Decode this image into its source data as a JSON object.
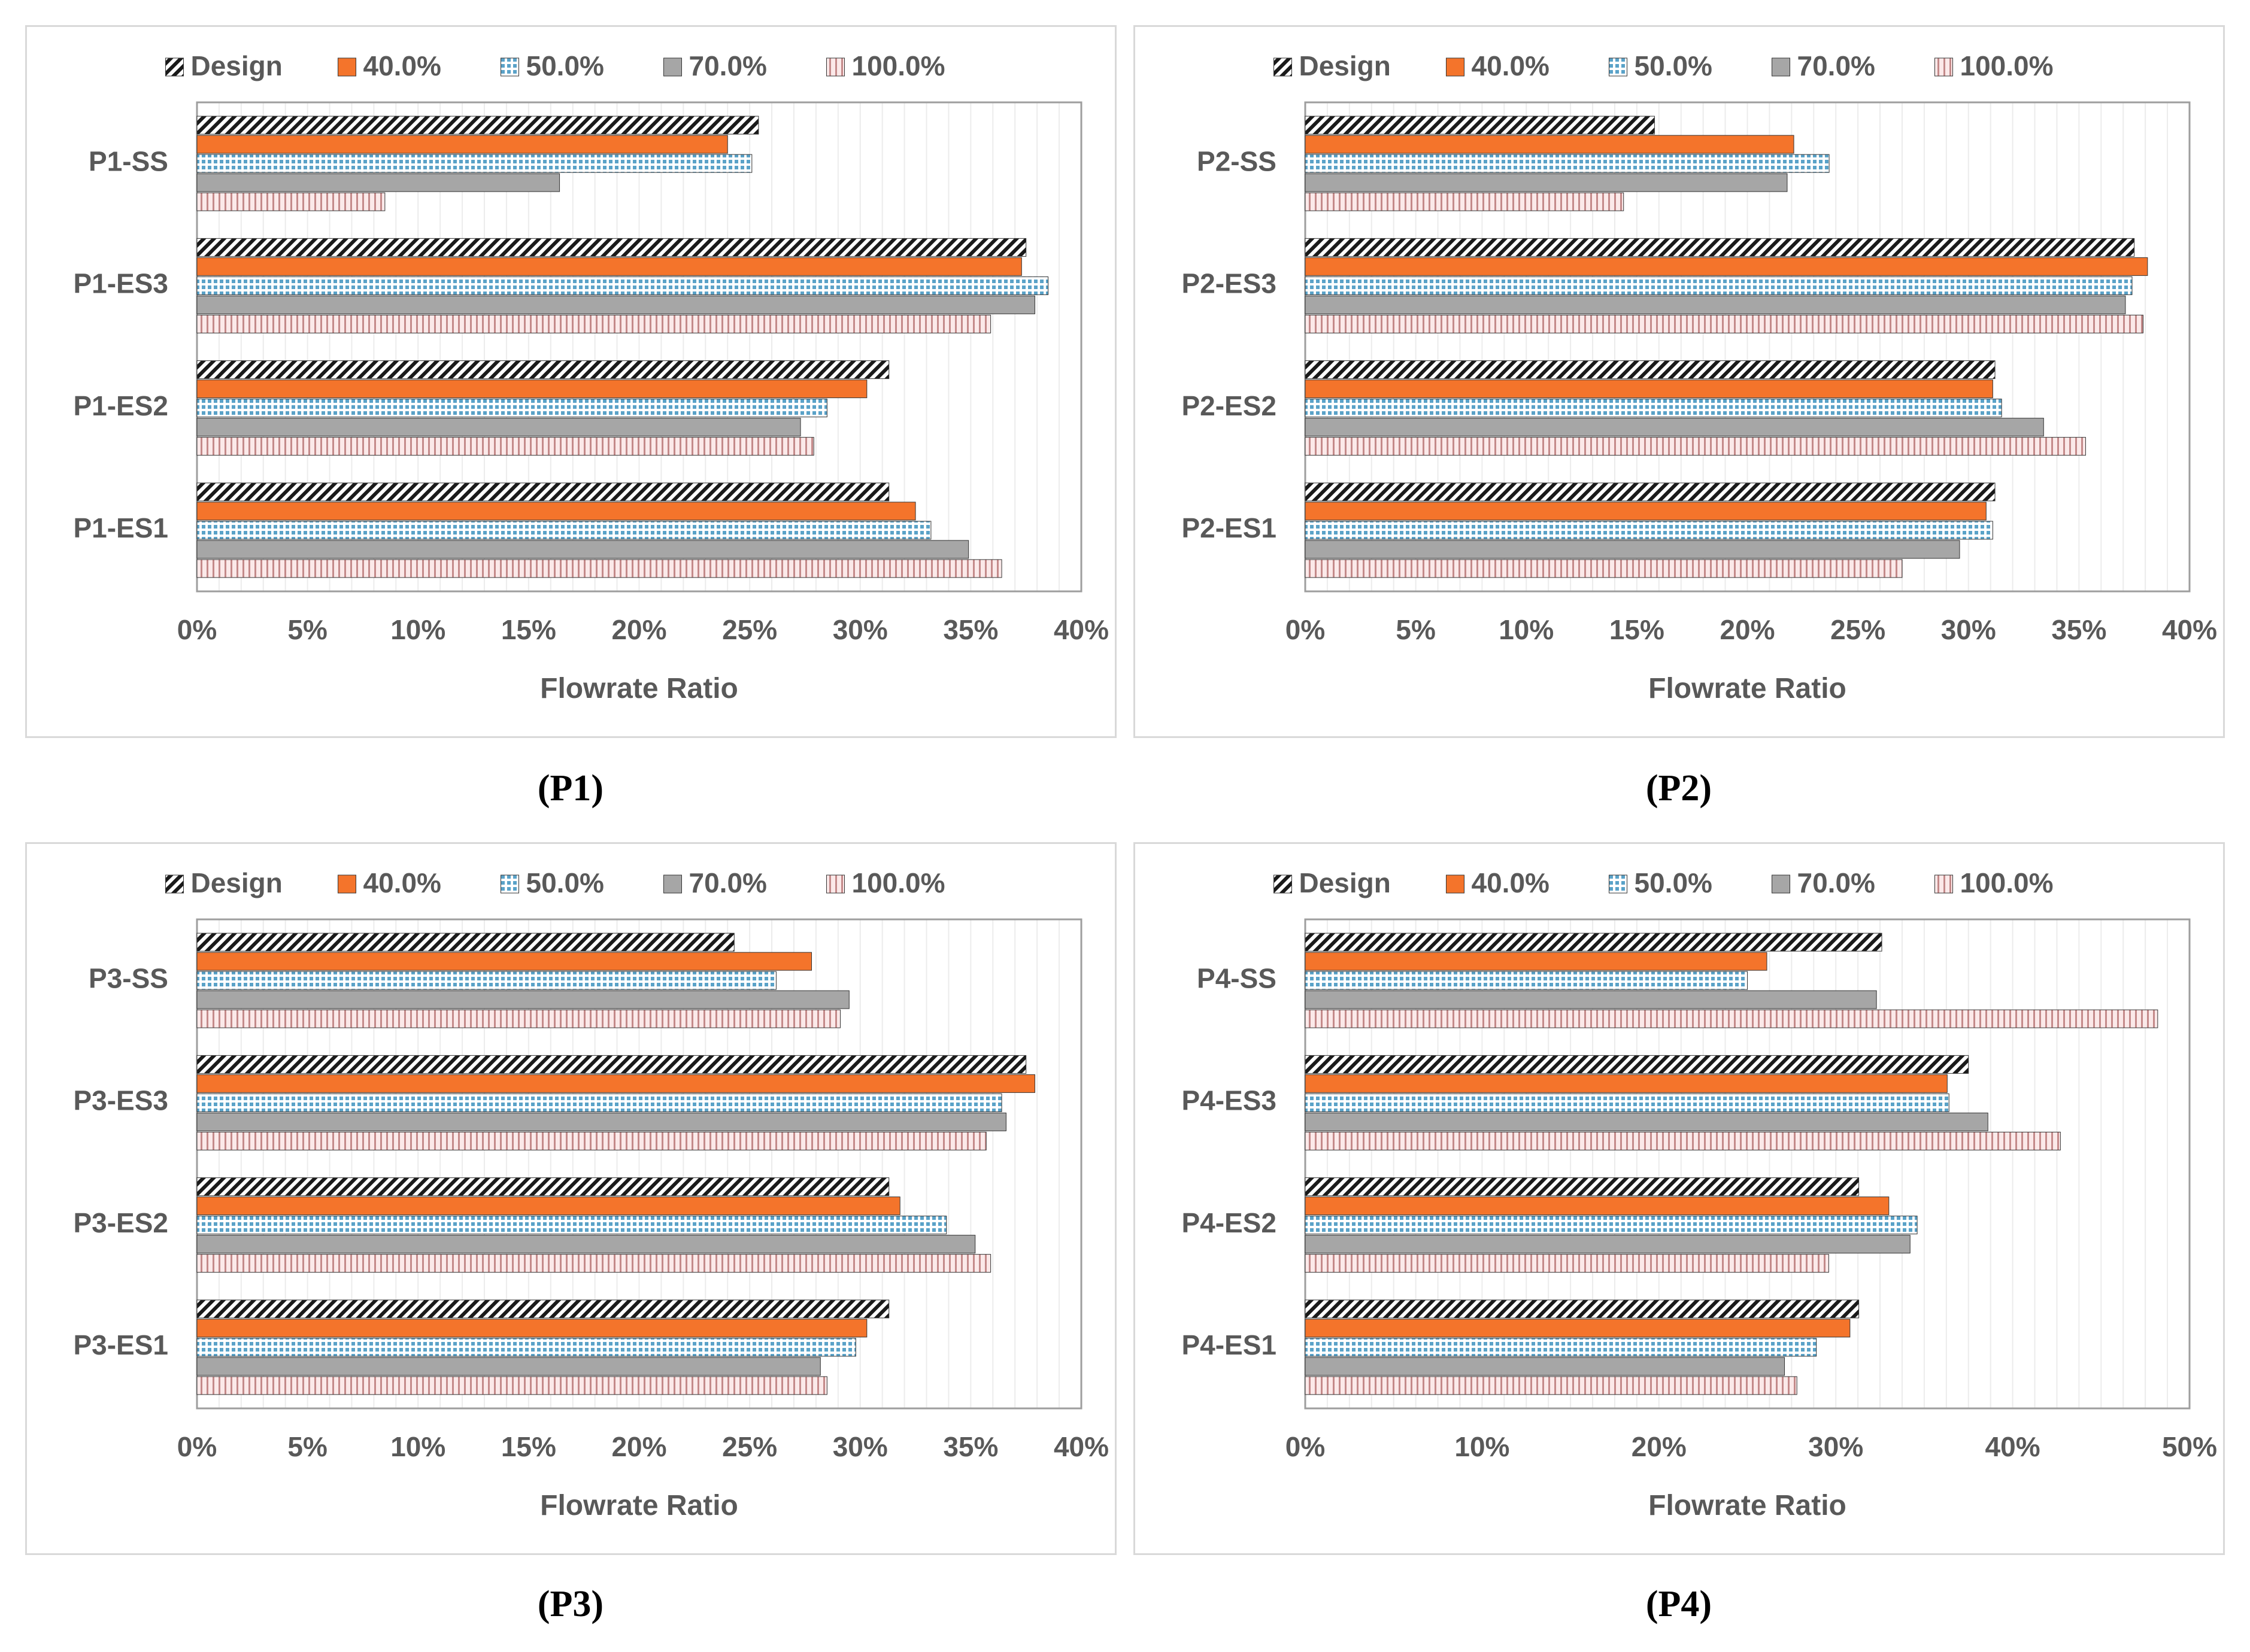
{
  "legend_swatches": {
    "Design": {
      "fill": "#1a1a1a",
      "pattern": "diagonal"
    },
    "40.0%": {
      "fill": "#f4742b",
      "pattern": "solid"
    },
    "50.0%": {
      "fill": "#5aa2c8",
      "pattern": "grid"
    },
    "70.0%": {
      "fill": "#a6a6a6",
      "pattern": "solid"
    },
    "100.0%": {
      "fill": "#c48a8a",
      "pattern": "vertical"
    }
  },
  "chart_data": [
    {
      "type": "bar",
      "orientation": "horizontal",
      "caption": "(P1)",
      "xlabel": "Flowrate Ratio",
      "xlim": [
        0,
        40
      ],
      "xticks": [
        "0%",
        "5%",
        "10%",
        "15%",
        "20%",
        "25%",
        "30%",
        "35%",
        "40%"
      ],
      "categories": [
        "P1-SS",
        "P1-ES3",
        "P1-ES2",
        "P1-ES1"
      ],
      "legend_position": "top",
      "series": [
        {
          "name": "Design",
          "values": [
            25.4,
            37.5,
            31.3,
            31.3
          ]
        },
        {
          "name": "40.0%",
          "values": [
            24.0,
            37.3,
            30.3,
            32.5
          ]
        },
        {
          "name": "50.0%",
          "values": [
            25.1,
            38.5,
            28.5,
            33.2
          ]
        },
        {
          "name": "70.0%",
          "values": [
            16.4,
            37.9,
            27.3,
            34.9
          ]
        },
        {
          "name": "100.0%",
          "values": [
            8.5,
            35.9,
            27.9,
            36.4
          ]
        }
      ]
    },
    {
      "type": "bar",
      "orientation": "horizontal",
      "caption": "(P2)",
      "xlabel": "Flowrate Ratio",
      "xlim": [
        0,
        40
      ],
      "xticks": [
        "0%",
        "5%",
        "10%",
        "15%",
        "20%",
        "25%",
        "30%",
        "35%",
        "40%"
      ],
      "categories": [
        "P2-SS",
        "P2-ES3",
        "P2-ES2",
        "P2-ES1"
      ],
      "legend_position": "top",
      "series": [
        {
          "name": "Design",
          "values": [
            15.8,
            37.5,
            31.2,
            31.2
          ]
        },
        {
          "name": "40.0%",
          "values": [
            22.1,
            38.1,
            31.1,
            30.8
          ]
        },
        {
          "name": "50.0%",
          "values": [
            23.7,
            37.4,
            31.5,
            31.1
          ]
        },
        {
          "name": "70.0%",
          "values": [
            21.8,
            37.1,
            33.4,
            29.6
          ]
        },
        {
          "name": "100.0%",
          "values": [
            14.4,
            37.9,
            35.3,
            27.0
          ]
        }
      ]
    },
    {
      "type": "bar",
      "orientation": "horizontal",
      "caption": "(P3)",
      "xlabel": "Flowrate Ratio",
      "xlim": [
        0,
        40
      ],
      "xticks": [
        "0%",
        "5%",
        "10%",
        "15%",
        "20%",
        "25%",
        "30%",
        "35%",
        "40%"
      ],
      "categories": [
        "P3-SS",
        "P3-ES3",
        "P3-ES2",
        "P3-ES1"
      ],
      "legend_position": "top",
      "series": [
        {
          "name": "Design",
          "values": [
            24.3,
            37.5,
            31.3,
            31.3
          ]
        },
        {
          "name": "40.0%",
          "values": [
            27.8,
            37.9,
            31.8,
            30.3
          ]
        },
        {
          "name": "50.0%",
          "values": [
            26.2,
            36.4,
            33.9,
            29.8
          ]
        },
        {
          "name": "70.0%",
          "values": [
            29.5,
            36.6,
            35.2,
            28.2
          ]
        },
        {
          "name": "100.0%",
          "values": [
            29.1,
            35.7,
            35.9,
            28.5
          ]
        }
      ]
    },
    {
      "type": "bar",
      "orientation": "horizontal",
      "caption": "(P4)",
      "xlabel": "Flowrate Ratio",
      "xlim": [
        0,
        50
      ],
      "xticks": [
        "0%",
        "10%",
        "20%",
        "30%",
        "40%",
        "50%"
      ],
      "categories": [
        "P4-SS",
        "P4-ES3",
        "P4-ES2",
        "P4-ES1"
      ],
      "legend_position": "top",
      "series": [
        {
          "name": "Design",
          "values": [
            32.6,
            37.5,
            31.3,
            31.3
          ]
        },
        {
          "name": "40.0%",
          "values": [
            26.1,
            36.3,
            33.0,
            30.8
          ]
        },
        {
          "name": "50.0%",
          "values": [
            25.0,
            36.4,
            34.6,
            28.9
          ]
        },
        {
          "name": "70.0%",
          "values": [
            32.3,
            38.6,
            34.2,
            27.1
          ]
        },
        {
          "name": "100.0%",
          "values": [
            48.2,
            42.7,
            29.6,
            27.8
          ]
        }
      ]
    }
  ]
}
